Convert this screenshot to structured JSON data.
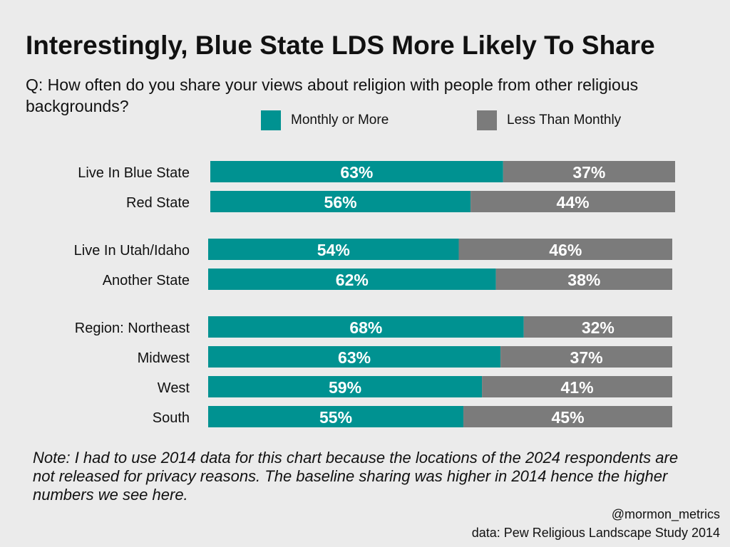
{
  "chart_data": {
    "type": "bar",
    "stacked": true,
    "orientation": "horizontal",
    "title": "Interestingly, Blue State LDS More Likely To Share",
    "subtitle": "Q: How often do you share your views about religion with people from other religious backgrounds?",
    "categories": [
      "Live In Blue State",
      "Red State",
      "Live In Utah/Idaho",
      "Another State",
      "Region: Northeast",
      "Midwest",
      "West",
      "South"
    ],
    "groups": [
      [
        0,
        1
      ],
      [
        2,
        3
      ],
      [
        4,
        5,
        6,
        7
      ]
    ],
    "series": [
      {
        "name": "Monthly or More",
        "color": "#009291",
        "values": [
          63,
          56,
          54,
          62,
          68,
          63,
          59,
          55
        ],
        "labels": [
          "63%",
          "56%",
          "54%",
          "62%",
          "68%",
          "63%",
          "59%",
          "55%"
        ]
      },
      {
        "name": "Less Than Monthly",
        "color": "#7b7b7b",
        "values": [
          37,
          44,
          46,
          38,
          32,
          37,
          41,
          45
        ],
        "labels": [
          "37%",
          "44%",
          "46%",
          "38%",
          "32%",
          "37%",
          "41%",
          "45%"
        ]
      }
    ],
    "xlim": [
      0,
      100
    ],
    "legend": "top"
  },
  "note": "Note: I had to use 2014 data for this chart because the locations of the 2024 respondents are not released for privacy reasons. The baseline sharing was higher in 2014 hence the higher numbers we see here.",
  "handle": "@mormon_metrics",
  "source": "data: Pew Religious Landscape Study 2014"
}
